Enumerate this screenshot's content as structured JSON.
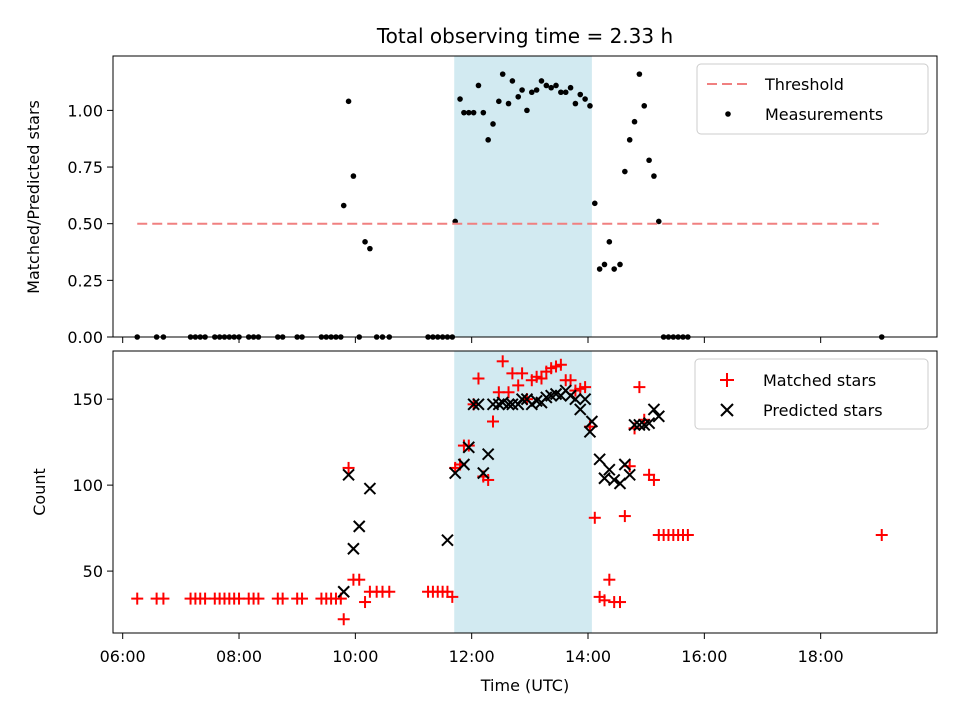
{
  "chart_data": {
    "title": "Total observing time = 2.33 h",
    "xlabel": "Time (UTC)",
    "x_ticks": [
      "06:00",
      "08:00",
      "10:00",
      "12:00",
      "14:00",
      "16:00",
      "18:00"
    ],
    "xlim": [
      "05:50",
      "20:00"
    ],
    "shaded_interval": [
      "11:42",
      "14:04"
    ],
    "colors": {
      "threshold": "#f08080",
      "measurements": "#000000",
      "matched": "#ff0000",
      "predicted": "#000000",
      "shade": "#add8e6"
    },
    "top": {
      "type": "scatter",
      "ylabel": "Matched/Predicted stars",
      "ylim": [
        0,
        1.24
      ],
      "y_ticks": [
        "0.00",
        "0.25",
        "0.50",
        "0.75",
        "1.00"
      ],
      "legend_placement": "top-right",
      "threshold": {
        "name": "Threshold",
        "value": 0.5,
        "x": [
          "06:15",
          "19:00"
        ]
      },
      "measurements": {
        "name": "Measurements",
        "points": [
          [
            "06:15",
            0
          ],
          [
            "06:35",
            0
          ],
          [
            "06:42",
            0
          ],
          [
            "07:10",
            0
          ],
          [
            "07:15",
            0
          ],
          [
            "07:20",
            0
          ],
          [
            "07:25",
            0
          ],
          [
            "07:35",
            0
          ],
          [
            "07:40",
            0
          ],
          [
            "07:45",
            0
          ],
          [
            "07:50",
            0
          ],
          [
            "07:55",
            0
          ],
          [
            "08:00",
            0
          ],
          [
            "08:10",
            0
          ],
          [
            "08:15",
            0
          ],
          [
            "08:20",
            0
          ],
          [
            "08:40",
            0
          ],
          [
            "08:45",
            0
          ],
          [
            "09:00",
            0
          ],
          [
            "09:05",
            0
          ],
          [
            "09:25",
            0
          ],
          [
            "09:30",
            0
          ],
          [
            "09:35",
            0
          ],
          [
            "09:40",
            0
          ],
          [
            "09:45",
            0
          ],
          [
            "09:48",
            0.58
          ],
          [
            "09:53",
            1.04
          ],
          [
            "09:58",
            0.71
          ],
          [
            "10:04",
            0
          ],
          [
            "10:10",
            0.42
          ],
          [
            "10:15",
            0.39
          ],
          [
            "10:22",
            0
          ],
          [
            "10:28",
            0
          ],
          [
            "10:35",
            0
          ],
          [
            "11:15",
            0
          ],
          [
            "11:20",
            0
          ],
          [
            "11:25",
            0
          ],
          [
            "11:30",
            0
          ],
          [
            "11:35",
            0
          ],
          [
            "11:40",
            0
          ],
          [
            "11:43",
            0.51
          ],
          [
            "11:48",
            1.05
          ],
          [
            "11:52",
            0.99
          ],
          [
            "11:57",
            0.99
          ],
          [
            "12:02",
            0.99
          ],
          [
            "12:07",
            1.11
          ],
          [
            "12:12",
            0.99
          ],
          [
            "12:17",
            0.87
          ],
          [
            "12:22",
            0.94
          ],
          [
            "12:28",
            1.04
          ],
          [
            "12:32",
            1.16
          ],
          [
            "12:38",
            1.03
          ],
          [
            "12:42",
            1.13
          ],
          [
            "12:48",
            1.06
          ],
          [
            "12:52",
            1.09
          ],
          [
            "12:57",
            1.0
          ],
          [
            "13:02",
            1.08
          ],
          [
            "13:07",
            1.09
          ],
          [
            "13:12",
            1.13
          ],
          [
            "13:17",
            1.11
          ],
          [
            "13:22",
            1.1
          ],
          [
            "13:27",
            1.11
          ],
          [
            "13:32",
            1.08
          ],
          [
            "13:37",
            1.08
          ],
          [
            "13:42",
            1.1
          ],
          [
            "13:47",
            1.03
          ],
          [
            "13:52",
            1.07
          ],
          [
            "13:57",
            1.05
          ],
          [
            "14:02",
            1.02
          ],
          [
            "14:07",
            0.59
          ],
          [
            "14:12",
            0.3
          ],
          [
            "14:17",
            0.32
          ],
          [
            "14:22",
            0.42
          ],
          [
            "14:27",
            0.3
          ],
          [
            "14:33",
            0.32
          ],
          [
            "14:38",
            0.73
          ],
          [
            "14:43",
            0.87
          ],
          [
            "14:48",
            0.95
          ],
          [
            "14:53",
            1.16
          ],
          [
            "14:58",
            1.02
          ],
          [
            "15:03",
            0.78
          ],
          [
            "15:08",
            0.71
          ],
          [
            "15:13",
            0.51
          ],
          [
            "15:18",
            0
          ],
          [
            "15:23",
            0
          ],
          [
            "15:28",
            0
          ],
          [
            "15:33",
            0
          ],
          [
            "15:38",
            0
          ],
          [
            "15:43",
            0
          ],
          [
            "19:03",
            0
          ]
        ]
      }
    },
    "bottom": {
      "type": "scatter",
      "ylabel": "Count",
      "ylim": [
        14,
        178
      ],
      "y_ticks": [
        "50",
        "100",
        "150"
      ],
      "legend_placement": "top-right",
      "matched": {
        "name": "Matched stars",
        "points": [
          [
            "06:15",
            34
          ],
          [
            "06:35",
            34
          ],
          [
            "06:42",
            34
          ],
          [
            "07:10",
            34
          ],
          [
            "07:15",
            34
          ],
          [
            "07:20",
            34
          ],
          [
            "07:25",
            34
          ],
          [
            "07:35",
            34
          ],
          [
            "07:40",
            34
          ],
          [
            "07:45",
            34
          ],
          [
            "07:50",
            34
          ],
          [
            "07:55",
            34
          ],
          [
            "08:00",
            34
          ],
          [
            "08:10",
            34
          ],
          [
            "08:15",
            34
          ],
          [
            "08:20",
            34
          ],
          [
            "08:40",
            34
          ],
          [
            "08:45",
            34
          ],
          [
            "09:00",
            34
          ],
          [
            "09:05",
            34
          ],
          [
            "09:25",
            34
          ],
          [
            "09:30",
            34
          ],
          [
            "09:35",
            34
          ],
          [
            "09:40",
            34
          ],
          [
            "09:45",
            34
          ],
          [
            "09:48",
            22
          ],
          [
            "09:53",
            110
          ],
          [
            "09:58",
            45
          ],
          [
            "10:04",
            45
          ],
          [
            "10:10",
            32
          ],
          [
            "10:15",
            38
          ],
          [
            "10:22",
            38
          ],
          [
            "10:28",
            38
          ],
          [
            "10:35",
            38
          ],
          [
            "11:15",
            38
          ],
          [
            "11:20",
            38
          ],
          [
            "11:25",
            38
          ],
          [
            "11:30",
            38
          ],
          [
            "11:35",
            38
          ],
          [
            "11:40",
            35
          ],
          [
            "11:43",
            110
          ],
          [
            "11:48",
            112
          ],
          [
            "11:52",
            123
          ],
          [
            "11:57",
            123
          ],
          [
            "12:02",
            147
          ],
          [
            "12:07",
            162
          ],
          [
            "12:12",
            105
          ],
          [
            "12:17",
            103
          ],
          [
            "12:22",
            137
          ],
          [
            "12:28",
            154
          ],
          [
            "12:32",
            172
          ],
          [
            "12:38",
            154
          ],
          [
            "12:42",
            165
          ],
          [
            "12:48",
            158
          ],
          [
            "12:52",
            165
          ],
          [
            "12:57",
            150
          ],
          [
            "13:02",
            161
          ],
          [
            "13:07",
            163
          ],
          [
            "13:12",
            162
          ],
          [
            "13:17",
            166
          ],
          [
            "13:22",
            168
          ],
          [
            "13:27",
            169
          ],
          [
            "13:32",
            170
          ],
          [
            "13:37",
            161
          ],
          [
            "13:42",
            161
          ],
          [
            "13:47",
            155
          ],
          [
            "13:52",
            156
          ],
          [
            "13:57",
            157
          ],
          [
            "14:02",
            134
          ],
          [
            "14:07",
            81
          ],
          [
            "14:12",
            35
          ],
          [
            "14:17",
            33
          ],
          [
            "14:22",
            45
          ],
          [
            "14:27",
            32
          ],
          [
            "14:33",
            32
          ],
          [
            "14:38",
            82
          ],
          [
            "14:43",
            111
          ],
          [
            "14:48",
            133
          ],
          [
            "14:53",
            157
          ],
          [
            "14:58",
            138
          ],
          [
            "15:03",
            106
          ],
          [
            "15:08",
            103
          ],
          [
            "15:13",
            71
          ],
          [
            "15:18",
            71
          ],
          [
            "15:23",
            71
          ],
          [
            "15:28",
            71
          ],
          [
            "15:33",
            71
          ],
          [
            "15:38",
            71
          ],
          [
            "15:43",
            71
          ],
          [
            "19:03",
            71
          ]
        ]
      },
      "predicted": {
        "name": "Predicted stars",
        "points": [
          [
            "09:48",
            38
          ],
          [
            "09:53",
            106
          ],
          [
            "09:58",
            63
          ],
          [
            "10:04",
            76
          ],
          [
            "10:15",
            98
          ],
          [
            "11:35",
            68
          ],
          [
            "11:43",
            107
          ],
          [
            "11:52",
            112
          ],
          [
            "11:57",
            122
          ],
          [
            "12:02",
            147
          ],
          [
            "12:07",
            147
          ],
          [
            "12:12",
            107
          ],
          [
            "12:17",
            118
          ],
          [
            "12:22",
            147
          ],
          [
            "12:28",
            147
          ],
          [
            "12:32",
            148
          ],
          [
            "12:38",
            147
          ],
          [
            "12:42",
            147
          ],
          [
            "12:48",
            147
          ],
          [
            "12:52",
            150
          ],
          [
            "12:57",
            150
          ],
          [
            "13:02",
            147
          ],
          [
            "13:07",
            149
          ],
          [
            "13:12",
            148
          ],
          [
            "13:17",
            151
          ],
          [
            "13:22",
            152
          ],
          [
            "13:27",
            153
          ],
          [
            "13:32",
            152
          ],
          [
            "13:37",
            155
          ],
          [
            "13:42",
            152
          ],
          [
            "13:47",
            150
          ],
          [
            "13:52",
            144
          ],
          [
            "13:57",
            150
          ],
          [
            "14:02",
            131
          ],
          [
            "14:04",
            137
          ],
          [
            "14:12",
            115
          ],
          [
            "14:17",
            104
          ],
          [
            "14:22",
            109
          ],
          [
            "14:27",
            103
          ],
          [
            "14:33",
            101
          ],
          [
            "14:38",
            112
          ],
          [
            "14:43",
            106
          ],
          [
            "14:48",
            135
          ],
          [
            "14:53",
            135
          ],
          [
            "14:58",
            135
          ],
          [
            "15:03",
            136
          ],
          [
            "15:08",
            144
          ],
          [
            "15:13",
            140
          ]
        ]
      }
    }
  }
}
